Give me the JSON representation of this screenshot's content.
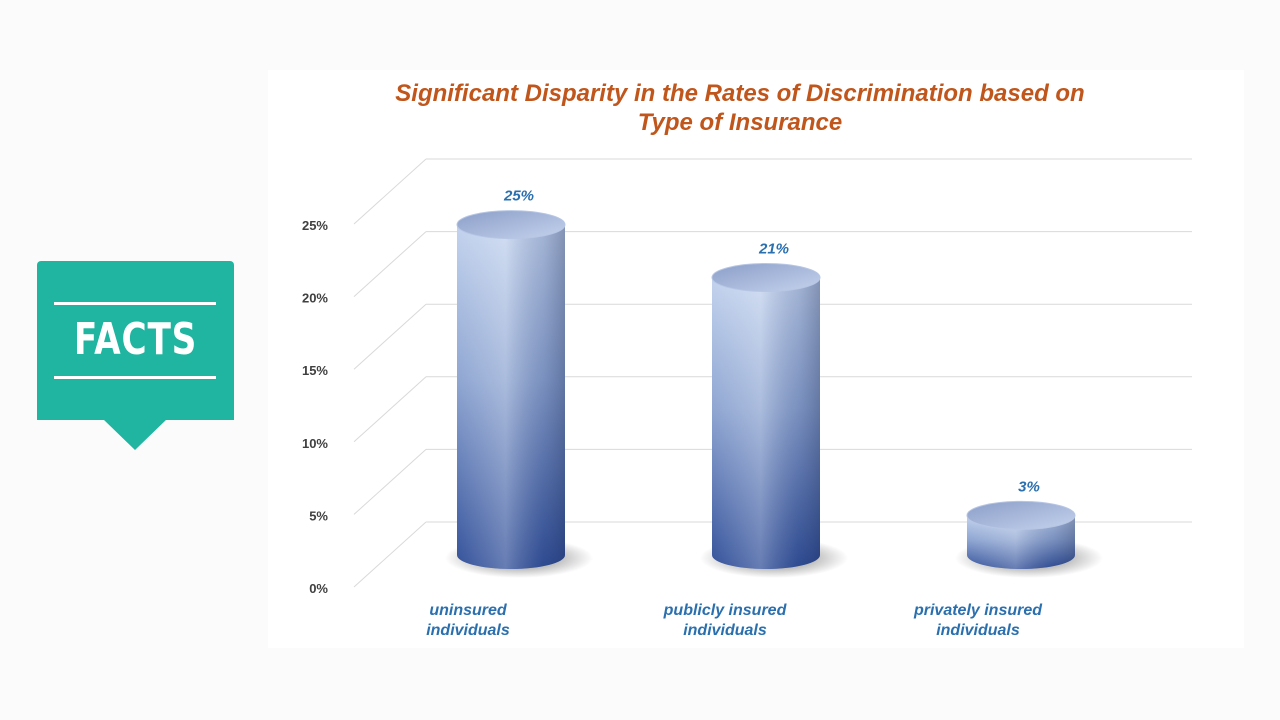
{
  "facts_badge": {
    "label": "FACTS",
    "color": "#1fb5a0"
  },
  "chart_data": {
    "type": "bar",
    "title": "Significant Disparity in the Rates of Discrimination based on Type of Insurance",
    "title_lines": [
      "Significant Disparity in the Rates of Discrimination based on",
      "Type of Insurance"
    ],
    "xlabel": "",
    "ylabel": "",
    "categories": [
      "uninsured individuals",
      "publicly insured individuals",
      "privately insured individuals"
    ],
    "category_lines": [
      [
        "uninsured",
        "individuals"
      ],
      [
        "publicly insured",
        "individuals"
      ],
      [
        "privately insured",
        "individuals"
      ]
    ],
    "values": [
      25,
      21,
      3
    ],
    "data_labels": [
      "25%",
      "21%",
      "3%"
    ],
    "ylim": [
      0,
      25
    ],
    "yticks": [
      "0%",
      "5%",
      "10%",
      "15%",
      "20%",
      "25%"
    ],
    "grid": true,
    "style": "3d-cylinder",
    "colors": {
      "title": "#c0561b",
      "labels": "#2a6fae",
      "bar_light": "#c3d3ee",
      "bar_dark": "#33519a"
    }
  }
}
